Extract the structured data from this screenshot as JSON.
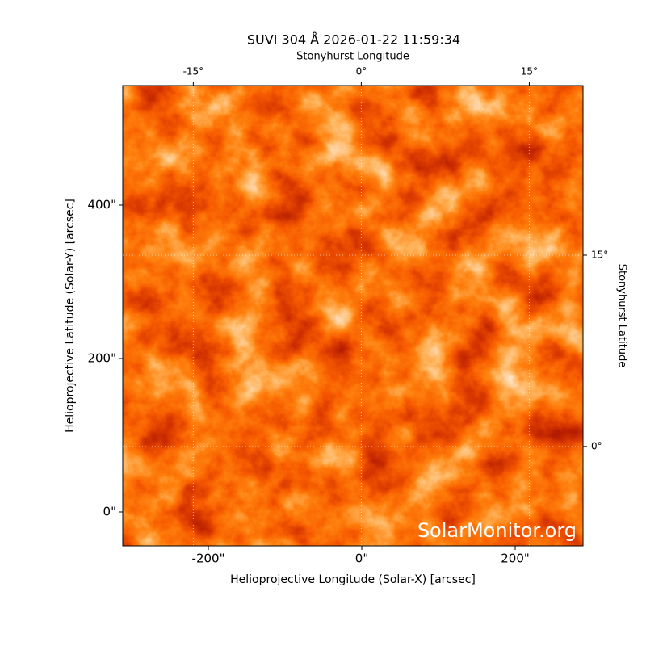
{
  "chart_data": {
    "type": "image",
    "title": "SUVI 304 Å 2026-01-22 11:59:34",
    "xlabel": "Helioprojective Longitude (Solar-X) [arcsec]",
    "ylabel": "Helioprojective Latitude (Solar-Y) [arcsec]",
    "x2label": "Stonyhurst Longitude",
    "y2label": "Stonyhurst Latitude",
    "xlim": [
      -311.6,
      288.4
    ],
    "ylim": [
      -44.2,
      555.8
    ],
    "xticks": [
      {
        "value": -200,
        "label": "-200\""
      },
      {
        "value": 0,
        "label": "0\""
      },
      {
        "value": 200,
        "label": "200\""
      }
    ],
    "yticks": [
      {
        "value": 0,
        "label": "0\""
      },
      {
        "value": 200,
        "label": "200\""
      },
      {
        "value": 400,
        "label": "400\""
      }
    ],
    "x2lim": [
      -21.3,
      19.8
    ],
    "x2ticks": [
      {
        "value": -15,
        "label": "-15°"
      },
      {
        "value": 0,
        "label": "0°"
      },
      {
        "value": 15,
        "label": "15°"
      }
    ],
    "y2lim": [
      -7.8,
      28.3
    ],
    "y2ticks": [
      {
        "value": 0,
        "label": "0°"
      },
      {
        "value": 15,
        "label": "15°"
      }
    ],
    "grid": true,
    "watermark": "SolarMonitor.org"
  }
}
